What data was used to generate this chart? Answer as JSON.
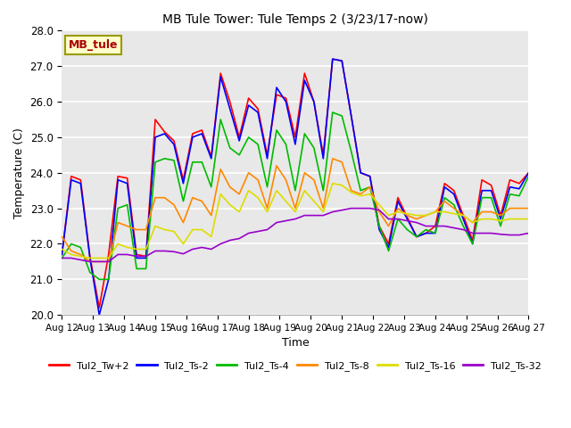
{
  "title": "MB Tule Tower: Tule Temps 2 (3/23/17-now)",
  "xlabel": "Time",
  "ylabel": "Temperature (C)",
  "ylim": [
    20.0,
    28.0
  ],
  "yticks": [
    20.0,
    21.0,
    22.0,
    23.0,
    24.0,
    25.0,
    26.0,
    27.0,
    28.0
  ],
  "bg_color": "#e8e8e8",
  "fig_color": "#ffffff",
  "legend_label": "MB_tule",
  "legend_box_color": "#ffffcc",
  "legend_box_edge": "#999900",
  "series_colors": {
    "Tul2_Tw+2": "#ff0000",
    "Tul2_Ts-2": "#0000ff",
    "Tul2_Ts-4": "#00bb00",
    "Tul2_Ts-8": "#ff8800",
    "Tul2_Ts-16": "#dddd00",
    "Tul2_Ts-32": "#9900cc"
  },
  "x_labels": [
    "Aug 12",
    "Aug 13",
    "Aug 14",
    "Aug 15",
    "Aug 16",
    "Aug 17",
    "Aug 18",
    "Aug 19",
    "Aug 20",
    "Aug 21",
    "Aug 22",
    "Aug 23",
    "Aug 24",
    "Aug 25",
    "Aug 26",
    "Aug 27"
  ],
  "series": {
    "Tul2_Tw+2": [
      21.7,
      23.9,
      23.8,
      21.65,
      20.2,
      21.7,
      23.9,
      23.85,
      21.7,
      21.65,
      25.5,
      25.15,
      24.9,
      23.8,
      25.1,
      25.2,
      24.45,
      26.8,
      26.0,
      25.0,
      26.1,
      25.8,
      24.5,
      26.2,
      26.1,
      25.0,
      26.8,
      26.0,
      24.5,
      27.2,
      27.15,
      25.6,
      24.0,
      23.9,
      22.5,
      22.0,
      23.3,
      22.75,
      22.2,
      22.3,
      22.5,
      23.7,
      23.5,
      22.8,
      22.1,
      23.8,
      23.65,
      22.8,
      23.8,
      23.7,
      24.0
    ],
    "Tul2_Ts-2": [
      21.7,
      23.8,
      23.7,
      21.6,
      20.0,
      21.0,
      23.8,
      23.7,
      21.6,
      21.6,
      25.0,
      25.1,
      24.8,
      23.7,
      25.0,
      25.1,
      24.4,
      26.7,
      25.8,
      24.9,
      25.9,
      25.7,
      24.4,
      26.4,
      26.0,
      24.8,
      26.6,
      26.0,
      24.4,
      27.2,
      27.15,
      25.6,
      24.0,
      23.9,
      22.4,
      21.9,
      23.2,
      22.7,
      22.2,
      22.3,
      22.3,
      23.6,
      23.4,
      22.7,
      22.0,
      23.5,
      23.5,
      22.7,
      23.6,
      23.55,
      24.0
    ],
    "Tul2_Ts-4": [
      21.6,
      22.0,
      21.9,
      21.2,
      21.0,
      21.0,
      23.0,
      23.1,
      21.3,
      21.3,
      24.3,
      24.4,
      24.35,
      23.2,
      24.3,
      24.3,
      23.6,
      25.5,
      24.7,
      24.5,
      25.0,
      24.8,
      23.6,
      25.2,
      24.8,
      23.5,
      25.1,
      24.7,
      23.5,
      25.7,
      25.6,
      24.6,
      23.5,
      23.6,
      22.5,
      21.8,
      22.7,
      22.4,
      22.2,
      22.4,
      22.3,
      23.3,
      23.1,
      22.5,
      22.0,
      23.3,
      23.3,
      22.5,
      23.4,
      23.35,
      23.9
    ],
    "Tul2_Ts-8": [
      22.2,
      21.8,
      21.7,
      21.5,
      21.5,
      21.5,
      22.6,
      22.5,
      22.4,
      22.4,
      23.3,
      23.3,
      23.1,
      22.6,
      23.3,
      23.2,
      22.8,
      24.1,
      23.6,
      23.4,
      24.0,
      23.8,
      23.0,
      24.2,
      23.8,
      23.0,
      24.0,
      23.8,
      23.0,
      24.4,
      24.3,
      23.5,
      23.4,
      23.6,
      22.9,
      22.5,
      23.0,
      22.8,
      22.7,
      22.8,
      22.9,
      23.2,
      23.0,
      22.8,
      22.6,
      22.9,
      22.9,
      22.8,
      23.0,
      23.0,
      23.0
    ],
    "Tul2_Ts-16": [
      21.85,
      21.7,
      21.65,
      21.6,
      21.6,
      21.6,
      22.0,
      21.9,
      21.85,
      21.85,
      22.5,
      22.4,
      22.35,
      22.0,
      22.4,
      22.4,
      22.2,
      23.4,
      23.1,
      22.9,
      23.5,
      23.3,
      22.9,
      23.5,
      23.2,
      22.9,
      23.5,
      23.2,
      22.9,
      23.7,
      23.65,
      23.45,
      23.35,
      23.4,
      23.1,
      22.8,
      22.9,
      22.85,
      22.8,
      22.8,
      22.9,
      22.9,
      22.85,
      22.8,
      22.6,
      22.7,
      22.7,
      22.65,
      22.7,
      22.7,
      22.7
    ],
    "Tul2_Ts-32": [
      21.6,
      21.6,
      21.55,
      21.5,
      21.5,
      21.5,
      21.7,
      21.7,
      21.65,
      21.65,
      21.8,
      21.8,
      21.78,
      21.72,
      21.85,
      21.9,
      21.85,
      22.0,
      22.1,
      22.15,
      22.3,
      22.35,
      22.4,
      22.6,
      22.65,
      22.7,
      22.8,
      22.8,
      22.8,
      22.9,
      22.95,
      23.0,
      23.0,
      23.0,
      22.95,
      22.7,
      22.7,
      22.65,
      22.6,
      22.5,
      22.5,
      22.5,
      22.45,
      22.4,
      22.3,
      22.3,
      22.3,
      22.27,
      22.25,
      22.25,
      22.3
    ]
  }
}
